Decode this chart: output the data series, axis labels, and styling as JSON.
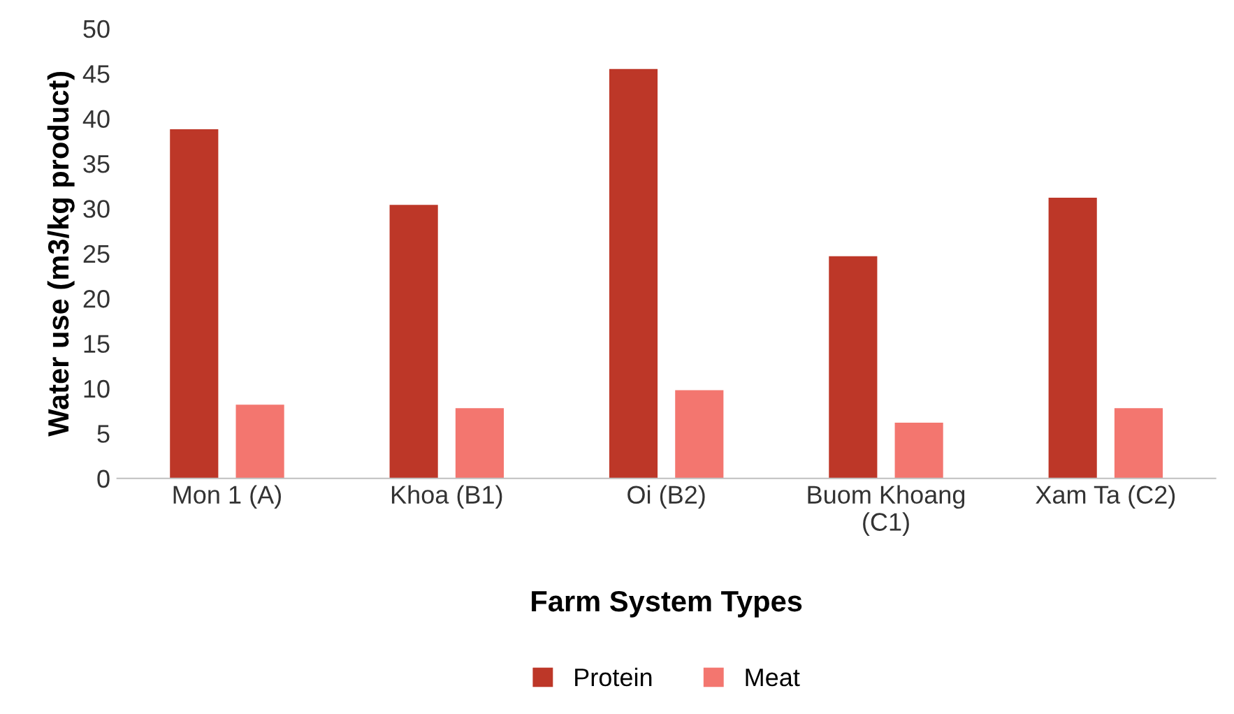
{
  "chart_data": {
    "type": "bar",
    "xlabel": "Farm System Types",
    "ylabel": "Water use (m3/kg product)",
    "categories": [
      "Mon 1 (A)",
      "Khoa (B1)",
      "Oi (B2)",
      "Buom Khoang\n(C1)",
      "Xam Ta (C2)"
    ],
    "series": [
      {
        "name": "Protein",
        "color": "#bd3728",
        "values": [
          38.8,
          30.4,
          45.5,
          24.7,
          31.2
        ]
      },
      {
        "name": "Meat",
        "color": "#f3766f",
        "values": [
          8.2,
          7.8,
          9.8,
          6.2,
          7.8
        ]
      }
    ],
    "ylim": [
      0,
      50
    ],
    "yticks": [
      0,
      5,
      10,
      15,
      20,
      25,
      30,
      35,
      40,
      45,
      50
    ],
    "grid": false,
    "legend": "bottom"
  }
}
